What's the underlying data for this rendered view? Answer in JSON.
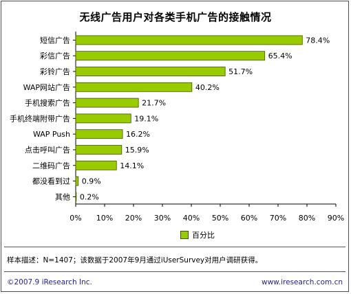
{
  "title": "无线广告用户对各类手机广告的接触情况",
  "legend_label": "百分比",
  "note": "样本描述：N=1407；该数据于2007年9月通过iUserSurvey对用户调研获得。",
  "footer": {
    "copyright": "©2007.9 iResearch Inc.",
    "url": "www.iresearch.com.cn"
  },
  "colors": {
    "bar_fill": "#99cc00",
    "bar_stroke": "#3d5200"
  },
  "chart_data": {
    "type": "bar",
    "orientation": "horizontal",
    "categories": [
      "短信广告",
      "彩信广告",
      "彩铃广告",
      "WAP网站广告",
      "手机搜索广告",
      "手机终端附带广告",
      "WAP Push",
      "点击呼叫广告",
      "二维码广告",
      "都没看到过",
      "其他"
    ],
    "series": [
      {
        "name": "百分比",
        "values": [
          78.4,
          65.4,
          51.7,
          40.2,
          21.7,
          19.1,
          16.2,
          15.9,
          14.1,
          0.9,
          0.2
        ]
      }
    ],
    "value_labels": [
      "78.4%",
      "65.4%",
      "51.7%",
      "40.2%",
      "21.7%",
      "19.1%",
      "16.2%",
      "15.9%",
      "14.1%",
      "0.9%",
      "0.2%"
    ],
    "x_ticks": [
      "0%",
      "10%",
      "20%",
      "30%",
      "40%",
      "50%",
      "60%",
      "70%",
      "80%",
      "90%"
    ],
    "xlim": [
      0,
      90
    ],
    "legend_position": "bottom",
    "grid": false
  }
}
